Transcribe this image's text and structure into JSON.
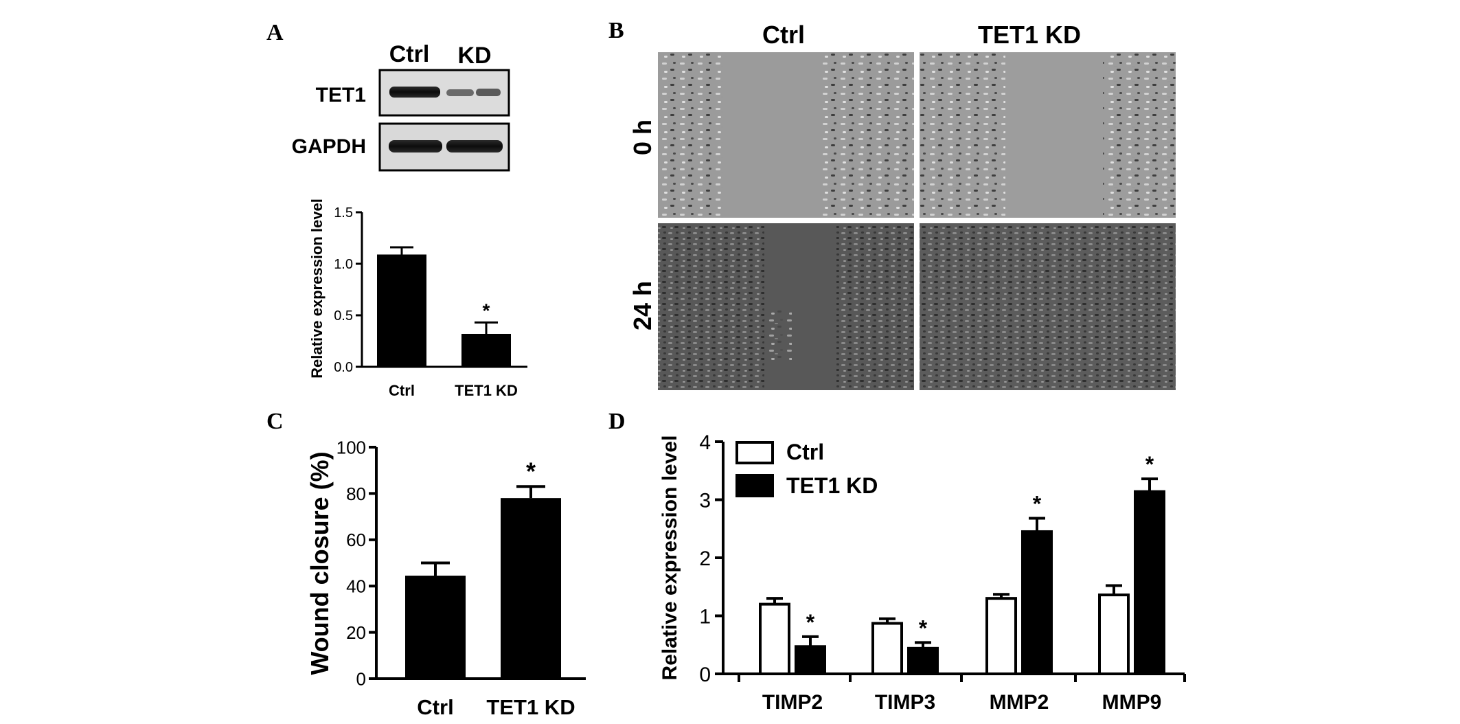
{
  "panels": {
    "a": {
      "label": "A",
      "blot_columns": [
        "Ctrl",
        "KD"
      ],
      "blot_rows": [
        "TET1",
        "GAPDH"
      ]
    },
    "b": {
      "label": "B",
      "columns": [
        "Ctrl",
        "TET1 KD"
      ],
      "rows": [
        "0 h",
        "24 h"
      ]
    },
    "c": {
      "label": "C"
    },
    "d": {
      "label": "D"
    }
  },
  "chart_data": [
    {
      "id": "A",
      "type": "bar",
      "categories": [
        "Ctrl",
        "TET1 KD"
      ],
      "values": [
        1.09,
        0.32
      ],
      "errors": [
        0.07,
        0.11
      ],
      "significance": [
        "",
        "*"
      ],
      "ylabel": "Relative expression level",
      "ylim": [
        0,
        1.5
      ],
      "yticks": [
        "0.0",
        "0.5",
        "1.0",
        "1.5"
      ],
      "bar_color": "#000000",
      "grid": false
    },
    {
      "id": "C",
      "type": "bar",
      "categories": [
        "Ctrl",
        "TET1 KD"
      ],
      "values": [
        44.5,
        78
      ],
      "errors": [
        5.5,
        5
      ],
      "significance": [
        "",
        "*"
      ],
      "ylabel": "Wound closure (%)",
      "ylim": [
        0,
        100
      ],
      "yticks": [
        "0",
        "20",
        "40",
        "60",
        "80",
        "100"
      ],
      "bar_color": "#000000",
      "grid": false
    },
    {
      "id": "D",
      "type": "bar",
      "categories": [
        "TIMP2",
        "TIMP3",
        "MMP2",
        "MMP9"
      ],
      "series": [
        {
          "name": "Ctrl",
          "values": [
            1.2,
            0.87,
            1.3,
            1.36
          ],
          "errors": [
            0.1,
            0.08,
            0.07,
            0.16
          ],
          "significance": [
            "",
            "",
            "",
            ""
          ],
          "color": "#ffffff"
        },
        {
          "name": "TET1 KD",
          "values": [
            0.47,
            0.44,
            2.45,
            3.14
          ],
          "errors": [
            0.17,
            0.1,
            0.23,
            0.22
          ],
          "significance": [
            "*",
            "*",
            "*",
            "*"
          ],
          "color": "#000000"
        }
      ],
      "ylabel": "Relative expression level",
      "ylim": [
        0,
        4
      ],
      "yticks": [
        "0",
        "1",
        "2",
        "3",
        "4"
      ],
      "legend": "top-left",
      "grid": false
    }
  ]
}
